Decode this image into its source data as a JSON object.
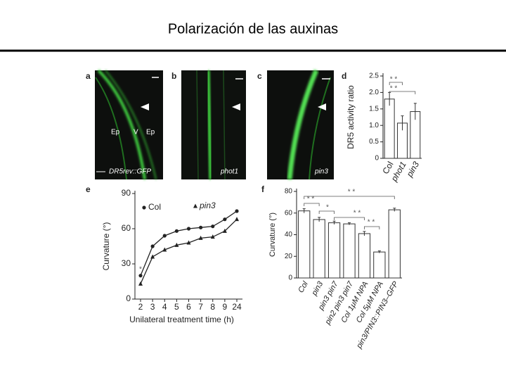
{
  "title": "Polarización de las auxinas",
  "micrographs": [
    {
      "panel": "a",
      "labels": [
        "Ep",
        "V",
        "Ep"
      ],
      "caption": "DR5rev::GFP"
    },
    {
      "panel": "b",
      "caption": "phot1"
    },
    {
      "panel": "c",
      "caption": "pin3"
    }
  ],
  "chart_data": [
    {
      "type": "bar",
      "panel": "d",
      "ylabel": "DR5 activity ratio",
      "categories": [
        "Col",
        "phot1",
        "pin3"
      ],
      "values": [
        1.8,
        1.07,
        1.42
      ],
      "errors": [
        0.2,
        0.22,
        0.25
      ],
      "ylim": [
        0,
        2.5
      ],
      "yticks": [
        0,
        0.5,
        {
          "value": 1,
          "label": "1.0"
        },
        1.5,
        {
          "value": 2,
          "label": "2.0"
        },
        2.5
      ],
      "annotations": [
        "* *",
        "* *"
      ]
    },
    {
      "type": "line",
      "panel": "e",
      "xlabel": "Unilateral treatment time (h)",
      "ylabel": "Curvature (°)",
      "categories": [
        "2",
        "3",
        "4",
        "5",
        "6",
        "7",
        "8",
        "9",
        "24"
      ],
      "series": [
        {
          "name": "Col",
          "marker": "circle",
          "values": [
            20,
            45,
            54,
            58,
            60,
            61,
            62,
            68,
            75
          ]
        },
        {
          "name": "pin3",
          "marker": "triangle",
          "values": [
            13,
            36,
            42,
            46,
            48,
            52,
            53,
            58,
            68
          ]
        }
      ],
      "ylim": [
        0,
        90
      ],
      "yticks": [
        0,
        30,
        60,
        90
      ],
      "annotations": [
        "*"
      ]
    },
    {
      "type": "bar",
      "panel": "f",
      "ylabel": "Curvature (°)",
      "categories": [
        "Col",
        "pin3",
        "pin3 pin7",
        "pin2 pin3 pin7",
        "Col 1μM NPA",
        "Col 5μM NPA",
        "pin3/PIN3::PIN3–GFP"
      ],
      "values": [
        62,
        54,
        51,
        50,
        41,
        24,
        63
      ],
      "errors": [
        2,
        2,
        1.5,
        1,
        2,
        1,
        1.5
      ],
      "ylim": [
        0,
        80
      ],
      "yticks": [
        0,
        20,
        40,
        60,
        80
      ],
      "annotations": [
        "* *",
        "* *",
        "*",
        "* *",
        "* *"
      ]
    }
  ]
}
